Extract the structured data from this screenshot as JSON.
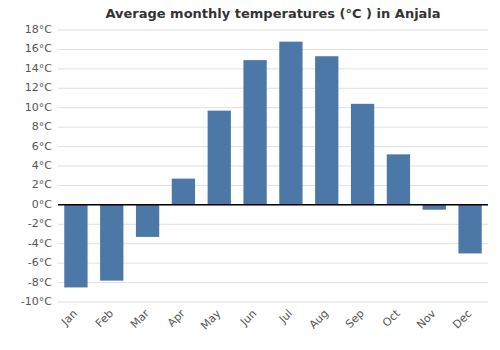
{
  "chart_data": {
    "type": "bar",
    "title": "Average monthly temperatures (°C ) in Anjala",
    "categories": [
      "Jan",
      "Feb",
      "Mar",
      "Apr",
      "May",
      "Jun",
      "Jul",
      "Aug",
      "Sep",
      "Oct",
      "Nov",
      "Dec"
    ],
    "values": [
      -8.5,
      -7.8,
      -3.3,
      2.7,
      9.7,
      14.9,
      16.8,
      15.3,
      10.4,
      5.2,
      -0.5,
      -5.0
    ],
    "ylim": [
      -10,
      18
    ],
    "yticks": [
      {
        "value": -10,
        "label": "-10°C"
      },
      {
        "value": -8,
        "label": "-8°C"
      },
      {
        "value": -6,
        "label": "-6°C"
      },
      {
        "value": -4,
        "label": "-4°C"
      },
      {
        "value": -2,
        "label": "-2°C"
      },
      {
        "value": 0,
        "label": "0°C"
      },
      {
        "value": 2,
        "label": "2°C"
      },
      {
        "value": 4,
        "label": "4°C"
      },
      {
        "value": 6,
        "label": "6°C"
      },
      {
        "value": 8,
        "label": "8°C"
      },
      {
        "value": 10,
        "label": "10°C"
      },
      {
        "value": 12,
        "label": "12°C"
      },
      {
        "value": 14,
        "label": "14°C"
      },
      {
        "value": 16,
        "label": "16°C"
      },
      {
        "value": 18,
        "label": "18°C"
      }
    ],
    "grid": true
  }
}
